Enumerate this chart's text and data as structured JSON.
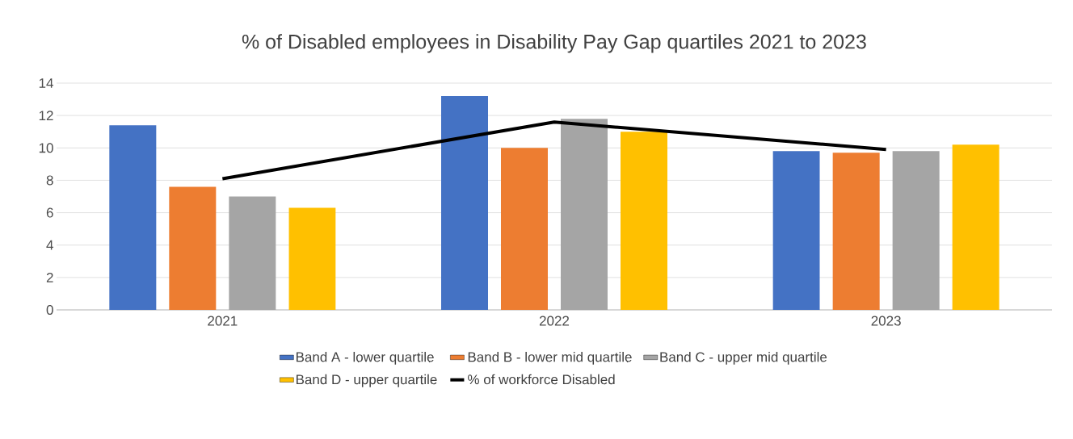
{
  "chart_data": {
    "type": "bar",
    "title": "% of Disabled employees in Disability Pay Gap quartiles 2021 to 2023",
    "categories": [
      "2021",
      "2022",
      "2023"
    ],
    "series": [
      {
        "name": "Band A - lower quartile",
        "color": "#4472c4",
        "values": [
          11.4,
          13.2,
          9.8
        ]
      },
      {
        "name": "Band B - lower mid quartile",
        "color": "#ed7d31",
        "values": [
          7.6,
          10.0,
          9.7
        ]
      },
      {
        "name": "Band C - upper mid quartile",
        "color": "#a5a5a5",
        "values": [
          7.0,
          11.8,
          9.8
        ]
      },
      {
        "name": "Band D - upper quartile",
        "color": "#ffc000",
        "values": [
          6.3,
          11.0,
          10.2
        ]
      },
      {
        "name": "% of workforce Disabled",
        "color": "#000000",
        "type": "line",
        "values": [
          8.1,
          11.6,
          9.9
        ]
      }
    ],
    "ylim": [
      0,
      14
    ],
    "yticks": [
      0,
      2,
      4,
      6,
      8,
      10,
      12,
      14
    ],
    "grid": "y",
    "legend": "bottom"
  }
}
